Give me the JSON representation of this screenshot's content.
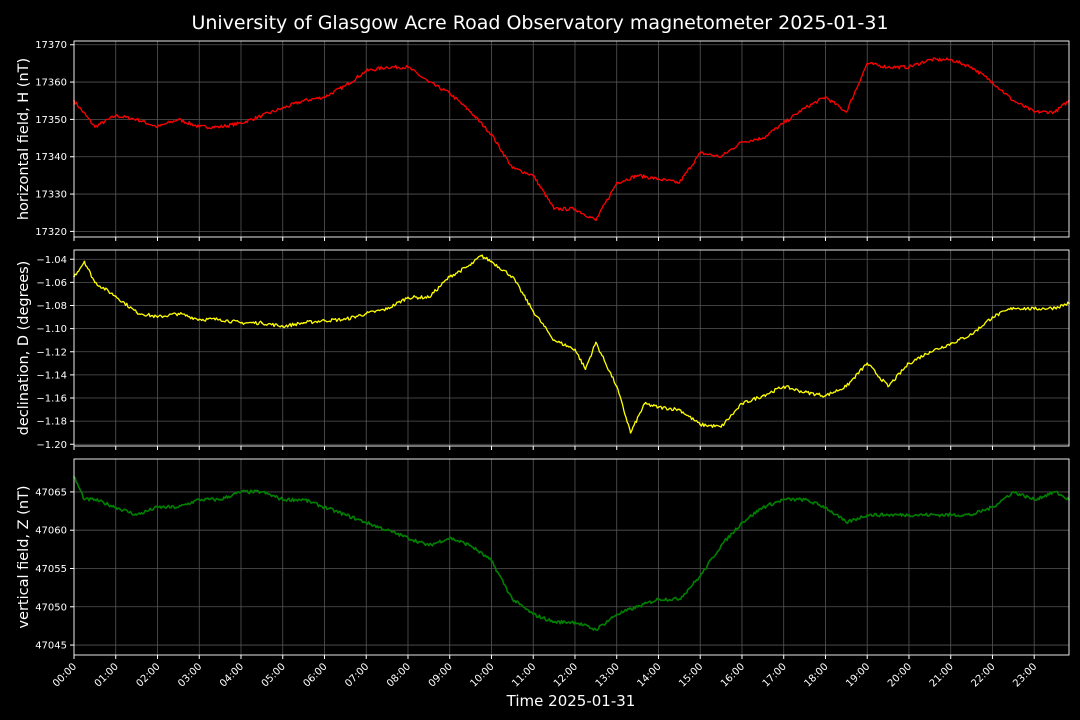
{
  "title": "University of Glasgow Acre Road Observatory magnetometer 2025-01-31",
  "chart_data": [
    {
      "type": "line",
      "ylabel": "horizontal field, H (nT)",
      "ylim": [
        17318.5,
        17371
      ],
      "yticks": [
        17320,
        17330,
        17340,
        17350,
        17360,
        17370
      ],
      "ytick_labels": [
        "17320",
        "17330",
        "17340",
        "17350",
        "17360",
        "17370"
      ],
      "color": "#ff0000",
      "x": [
        "00:00",
        "00:30",
        "01:00",
        "01:30",
        "02:00",
        "02:30",
        "03:00",
        "03:30",
        "04:00",
        "04:30",
        "05:00",
        "05:30",
        "06:00",
        "06:30",
        "07:00",
        "07:30",
        "08:00",
        "08:30",
        "09:00",
        "09:30",
        "10:00",
        "10:30",
        "11:00",
        "11:30",
        "12:00",
        "12:30",
        "13:00",
        "13:30",
        "14:00",
        "14:30",
        "15:00",
        "15:30",
        "16:00",
        "16:30",
        "17:00",
        "17:30",
        "18:00",
        "18:30",
        "19:00",
        "19:30",
        "20:00",
        "20:30",
        "21:00",
        "21:30",
        "22:00",
        "22:30",
        "23:00",
        "23:30",
        "23:50"
      ],
      "values": [
        17355,
        17348,
        17351,
        17350,
        17348,
        17350,
        17348,
        17348,
        17349,
        17351,
        17353,
        17355,
        17356,
        17359,
        17363,
        17364,
        17364,
        17360,
        17357,
        17352,
        17346,
        17337,
        17335,
        17326,
        17326,
        17323,
        17333,
        17335,
        17334,
        17333,
        17341,
        17340,
        17344,
        17345,
        17349,
        17353,
        17356,
        17352,
        17365,
        17364,
        17364,
        17366,
        17366,
        17364,
        17360,
        17355,
        17352,
        17352,
        17355
      ],
      "title": ""
    },
    {
      "type": "line",
      "ylabel": "declination, D (degrees)",
      "ylim": [
        -1.2015,
        -1.032
      ],
      "yticks": [
        -1.2,
        -1.18,
        -1.16,
        -1.14,
        -1.12,
        -1.1,
        -1.08,
        -1.06,
        -1.04
      ],
      "ytick_labels": [
        "−1.20",
        "−1.18",
        "−1.16",
        "−1.14",
        "−1.12",
        "−1.10",
        "−1.08",
        "−1.06",
        "−1.04"
      ],
      "color": "#ffff00",
      "x": [
        "00:00",
        "00:15",
        "00:30",
        "01:00",
        "01:30",
        "02:00",
        "02:30",
        "03:00",
        "03:30",
        "04:00",
        "04:30",
        "05:00",
        "05:30",
        "06:00",
        "06:30",
        "07:00",
        "07:30",
        "08:00",
        "08:30",
        "09:00",
        "09:30",
        "09:45",
        "10:00",
        "10:30",
        "11:00",
        "11:30",
        "12:00",
        "12:15",
        "12:30",
        "13:00",
        "13:20",
        "13:40",
        "14:00",
        "14:30",
        "15:00",
        "15:30",
        "16:00",
        "16:30",
        "17:00",
        "17:30",
        "18:00",
        "18:30",
        "19:00",
        "19:30",
        "20:00",
        "20:30",
        "21:00",
        "21:30",
        "22:00",
        "22:30",
        "23:00",
        "23:30",
        "23:50"
      ],
      "values": [
        -1.055,
        -1.042,
        -1.06,
        -1.072,
        -1.086,
        -1.09,
        -1.087,
        -1.092,
        -1.092,
        -1.095,
        -1.095,
        -1.098,
        -1.095,
        -1.093,
        -1.092,
        -1.087,
        -1.083,
        -1.073,
        -1.073,
        -1.055,
        -1.045,
        -1.037,
        -1.042,
        -1.055,
        -1.085,
        -1.11,
        -1.118,
        -1.135,
        -1.112,
        -1.15,
        -1.19,
        -1.165,
        -1.168,
        -1.17,
        -1.183,
        -1.185,
        -1.165,
        -1.158,
        -1.15,
        -1.155,
        -1.158,
        -1.15,
        -1.13,
        -1.15,
        -1.13,
        -1.12,
        -1.113,
        -1.105,
        -1.09,
        -1.082,
        -1.083,
        -1.082,
        -1.078
      ],
      "title": ""
    },
    {
      "type": "line",
      "ylabel": "vertical field, Z (nT)",
      "ylim": [
        47043.7,
        47069.3
      ],
      "yticks": [
        47045,
        47050,
        47055,
        47060,
        47065
      ],
      "ytick_labels": [
        "47045",
        "47050",
        "47055",
        "47060",
        "47065"
      ],
      "color": "#008000",
      "x": [
        "00:00",
        "00:15",
        "00:30",
        "01:00",
        "01:30",
        "02:00",
        "02:30",
        "03:00",
        "03:30",
        "04:00",
        "04:30",
        "05:00",
        "05:30",
        "06:00",
        "06:30",
        "07:00",
        "07:30",
        "08:00",
        "08:30",
        "09:00",
        "09:30",
        "10:00",
        "10:30",
        "11:00",
        "11:30",
        "12:00",
        "12:30",
        "13:00",
        "13:30",
        "14:00",
        "14:30",
        "15:00",
        "15:30",
        "16:00",
        "16:30",
        "17:00",
        "17:30",
        "18:00",
        "18:30",
        "19:00",
        "19:30",
        "20:00",
        "20:30",
        "21:00",
        "21:30",
        "22:00",
        "22:30",
        "23:00",
        "23:30",
        "23:50"
      ],
      "values": [
        47067,
        47064,
        47064,
        47063,
        47062,
        47063,
        47063,
        47064,
        47064,
        47065,
        47065,
        47064,
        47064,
        47063,
        47062,
        47061,
        47060,
        47059,
        47058,
        47059,
        47058,
        47056,
        47051,
        47049,
        47048,
        47048,
        47047,
        47049,
        47050,
        47051,
        47051,
        47054,
        47058,
        47061,
        47063,
        47064,
        47064,
        47063,
        47061,
        47062,
        47062,
        47062,
        47062,
        47062,
        47062,
        47063,
        47065,
        47064,
        47065,
        47064
      ],
      "title": ""
    }
  ],
  "x_axis": {
    "label": "Time 2025-01-31",
    "ticks": [
      "00:00",
      "01:00",
      "02:00",
      "03:00",
      "04:00",
      "05:00",
      "06:00",
      "07:00",
      "08:00",
      "09:00",
      "10:00",
      "11:00",
      "12:00",
      "13:00",
      "14:00",
      "15:00",
      "16:00",
      "17:00",
      "18:00",
      "19:00",
      "20:00",
      "21:00",
      "22:00",
      "23:00"
    ],
    "range": [
      "00:00",
      "23:50"
    ],
    "grid": true
  },
  "colors": {
    "background": "#000000",
    "text": "#ffffff",
    "grid": "#555555",
    "spine": "#ffffff"
  }
}
